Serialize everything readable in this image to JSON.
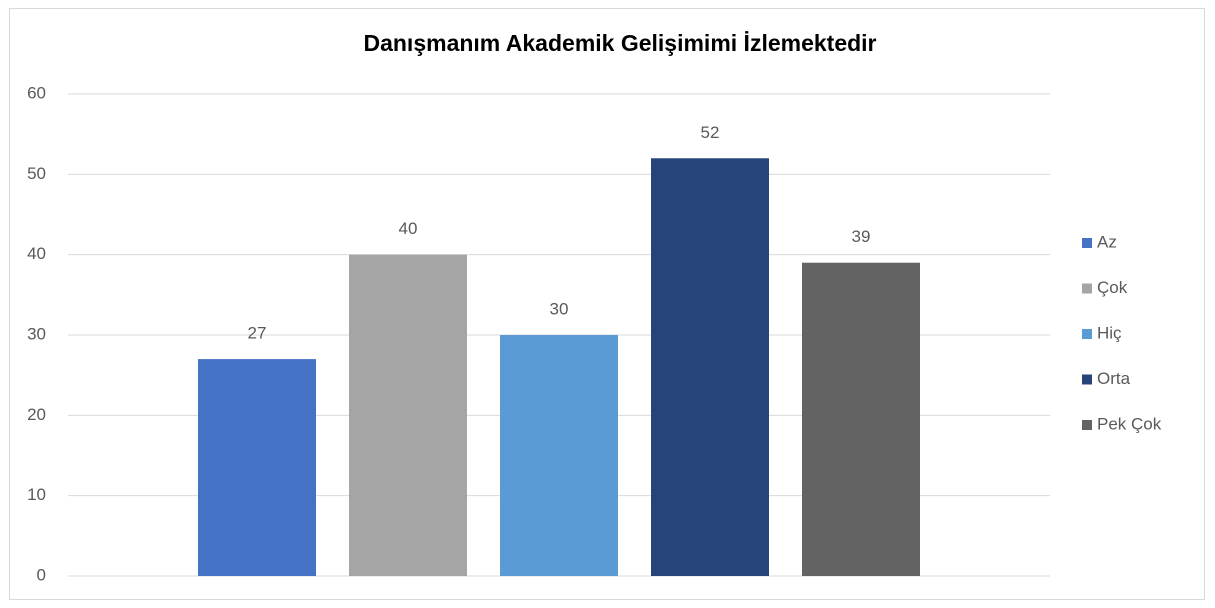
{
  "chart_data": {
    "type": "bar",
    "title": "Danışmanım Akademik Gelişimimi İzlemektedir",
    "series": [
      {
        "name": "Az",
        "color": "#4472c4",
        "values": [
          27
        ]
      },
      {
        "name": "Çok",
        "color": "#a5a5a5",
        "values": [
          40
        ]
      },
      {
        "name": "Hiç",
        "color": "#5b9bd5",
        "values": [
          30
        ]
      },
      {
        "name": "Orta",
        "color": "#264478",
        "values": [
          52
        ]
      },
      {
        "name": "Pek Çok",
        "color": "#636363",
        "values": [
          39
        ]
      }
    ],
    "ylim": [
      0,
      60
    ],
    "yticks": [
      0,
      10,
      20,
      30,
      40,
      50,
      60
    ],
    "grid": true,
    "legend": "right"
  }
}
